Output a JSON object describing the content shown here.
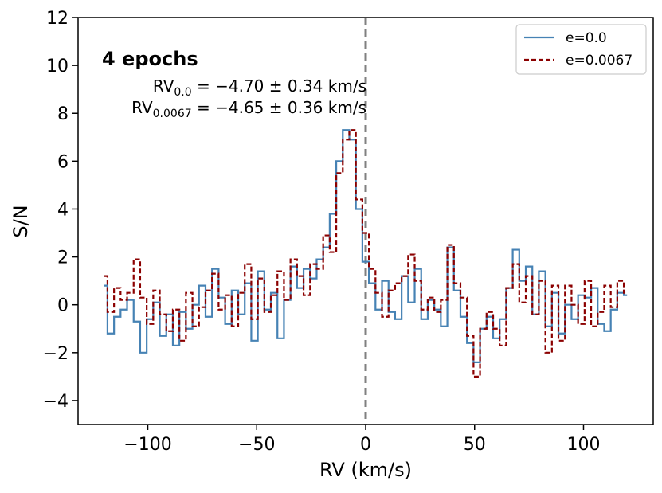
{
  "chart_data": {
    "type": "line",
    "xlabel": "RV (km/s)",
    "ylabel": "S/N",
    "xlim": [
      -132,
      132
    ],
    "ylim": [
      -5,
      12
    ],
    "xticks": [
      -100,
      -50,
      0,
      50,
      100
    ],
    "xtick_labels": [
      "−100",
      "−50",
      "0",
      "50",
      "100"
    ],
    "yticks": [
      -4,
      -2,
      0,
      2,
      4,
      6,
      8,
      10,
      12
    ],
    "ytick_labels": [
      "−4",
      "−2",
      "0",
      "2",
      "4",
      "6",
      "8",
      "10",
      "12"
    ],
    "vline": {
      "x": 0,
      "color": "#808080",
      "style": "dashed"
    },
    "annotation": {
      "title": "4 epochs",
      "line1": {
        "rv": "RV",
        "sub": "0.0",
        "value": " = −4.70 ± 0.34 km/s"
      },
      "line2": {
        "rv": "RV",
        "sub": "0.0067",
        "value": " = −4.65 ± 0.36 km/s"
      }
    },
    "legend_position": "top-right",
    "series": [
      {
        "name": "e=0.0",
        "color": "#4682b4",
        "style": "solid",
        "x": [
          -120,
          -117,
          -114,
          -111,
          -108,
          -105,
          -102,
          -99,
          -96,
          -93,
          -90,
          -87,
          -84,
          -81,
          -78,
          -75,
          -72,
          -69,
          -66,
          -63,
          -60,
          -57,
          -54,
          -51,
          -48,
          -45,
          -42,
          -39,
          -36,
          -33,
          -30,
          -27,
          -24,
          -21,
          -18,
          -15,
          -12,
          -9,
          -6,
          -3,
          0,
          3,
          6,
          9,
          12,
          15,
          18,
          21,
          24,
          27,
          30,
          33,
          36,
          39,
          42,
          45,
          48,
          51,
          54,
          57,
          60,
          63,
          66,
          69,
          72,
          75,
          78,
          81,
          84,
          87,
          90,
          93,
          96,
          99,
          102,
          105,
          108,
          111,
          114,
          117,
          120
        ],
        "values": [
          0.8,
          -1.2,
          -0.5,
          -0.2,
          0.2,
          -0.7,
          -2.0,
          -0.6,
          0.1,
          -1.3,
          -0.4,
          -1.7,
          -0.3,
          -1.0,
          0.0,
          0.8,
          -0.5,
          1.5,
          0.3,
          -0.8,
          0.6,
          -0.4,
          0.9,
          -1.5,
          1.4,
          -0.2,
          0.5,
          -1.4,
          0.2,
          1.6,
          0.7,
          1.5,
          1.1,
          1.9,
          2.4,
          3.8,
          6.0,
          7.3,
          6.9,
          4.0,
          1.8,
          0.9,
          -0.2,
          1.0,
          -0.3,
          -0.6,
          1.2,
          0.1,
          1.5,
          -0.6,
          0.2,
          -0.2,
          -0.9,
          2.4,
          0.6,
          -0.5,
          -1.6,
          -2.4,
          -1.0,
          -0.5,
          -1.4,
          -0.6,
          0.7,
          2.3,
          1.0,
          1.6,
          -0.4,
          1.4,
          -0.9,
          0.5,
          -1.2,
          0.0,
          -0.6,
          0.4,
          0.3,
          0.7,
          -0.8,
          -1.1,
          -0.2,
          0.5,
          0.4
        ]
      },
      {
        "name": "e=0.0067",
        "color": "#8b0000",
        "style": "dashed",
        "x": [
          -120,
          -117,
          -114,
          -111,
          -108,
          -105,
          -102,
          -99,
          -96,
          -93,
          -90,
          -87,
          -84,
          -81,
          -78,
          -75,
          -72,
          -69,
          -66,
          -63,
          -60,
          -57,
          -54,
          -51,
          -48,
          -45,
          -42,
          -39,
          -36,
          -33,
          -30,
          -27,
          -24,
          -21,
          -18,
          -15,
          -12,
          -9,
          -6,
          -3,
          0,
          3,
          6,
          9,
          12,
          15,
          18,
          21,
          24,
          27,
          30,
          33,
          36,
          39,
          42,
          45,
          48,
          51,
          54,
          57,
          60,
          63,
          66,
          69,
          72,
          75,
          78,
          81,
          84,
          87,
          90,
          93,
          96,
          99,
          102,
          105,
          108,
          111,
          114,
          117,
          120
        ],
        "values": [
          1.2,
          -0.3,
          0.7,
          0.2,
          0.5,
          1.9,
          0.3,
          -0.8,
          0.6,
          -0.4,
          -1.1,
          -0.2,
          -1.5,
          0.5,
          -0.9,
          -0.1,
          0.6,
          1.3,
          -0.2,
          0.4,
          -0.9,
          0.5,
          1.7,
          -0.6,
          1.1,
          -0.3,
          0.4,
          1.4,
          0.2,
          1.9,
          1.2,
          0.4,
          1.7,
          1.5,
          2.9,
          2.2,
          5.5,
          6.9,
          7.3,
          4.4,
          3.0,
          1.5,
          0.5,
          -0.5,
          0.6,
          0.9,
          1.2,
          2.1,
          1.0,
          -0.2,
          0.3,
          -0.3,
          0.2,
          2.5,
          0.9,
          0.3,
          -1.3,
          -3.0,
          -1.0,
          -0.3,
          -1.0,
          -1.7,
          0.7,
          1.7,
          0.1,
          1.2,
          -0.4,
          1.0,
          -2.0,
          0.8,
          -1.5,
          0.8,
          0.0,
          -0.8,
          1.0,
          -0.9,
          -0.3,
          0.8,
          -0.1,
          1.0,
          0.5
        ]
      }
    ]
  }
}
